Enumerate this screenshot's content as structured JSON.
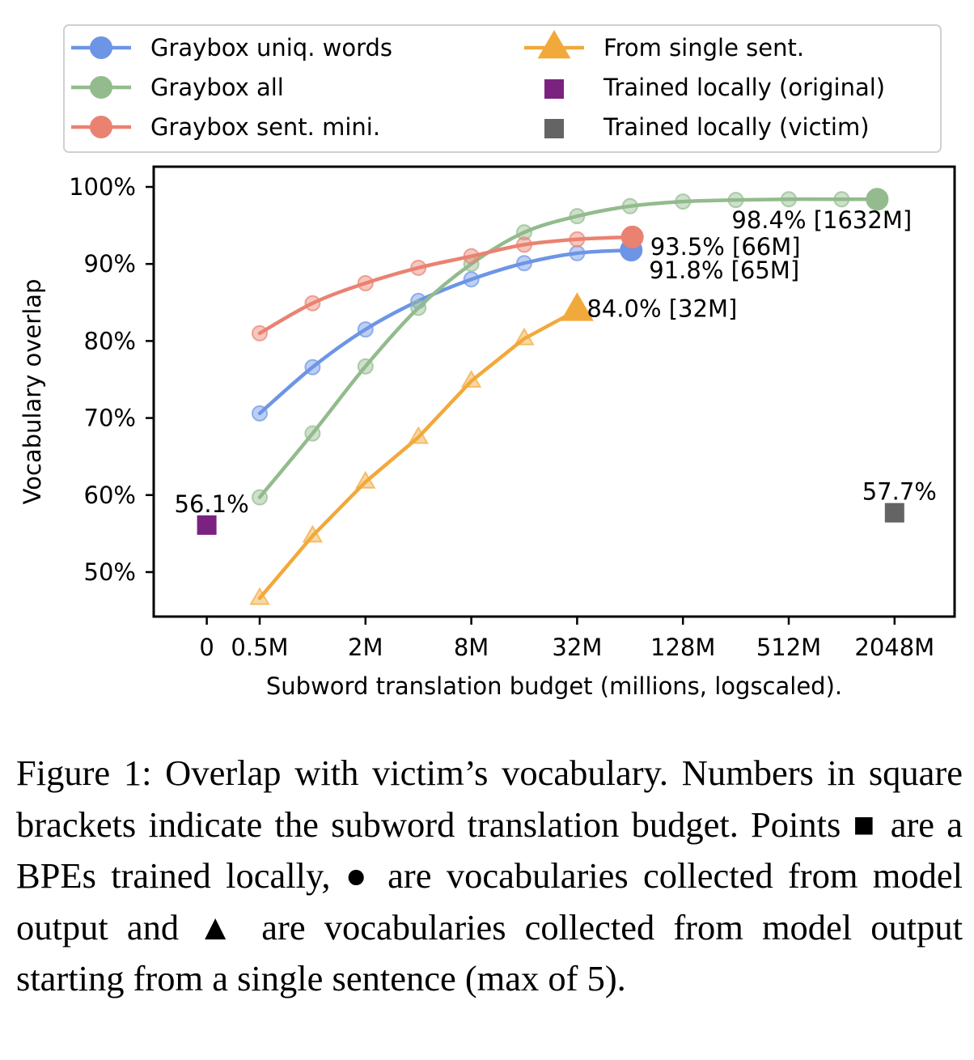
{
  "chart_data": {
    "type": "line",
    "xlabel": "Subword translation budget (millions, logscaled).",
    "ylabel": "Vocabulary overlap",
    "x_scale": "log2",
    "x_ticks": [
      {
        "value": 0,
        "label": "0"
      },
      {
        "value": 0.5,
        "label": "0.5M"
      },
      {
        "value": 2,
        "label": "2M"
      },
      {
        "value": 8,
        "label": "8M"
      },
      {
        "value": 32,
        "label": "32M"
      },
      {
        "value": 128,
        "label": "128M"
      },
      {
        "value": 512,
        "label": "512M"
      },
      {
        "value": 2048,
        "label": "2048M"
      }
    ],
    "y_ticks": [
      {
        "value": 50,
        "label": "50%"
      },
      {
        "value": 60,
        "label": "60%"
      },
      {
        "value": 70,
        "label": "70%"
      },
      {
        "value": 80,
        "label": "80%"
      },
      {
        "value": 90,
        "label": "90%"
      },
      {
        "value": 100,
        "label": "100%"
      }
    ],
    "ylim": [
      44,
      102
    ],
    "series": [
      {
        "name": "Graybox uniq. words",
        "color": "#6d95e6",
        "marker": "circle",
        "x": [
          0.5,
          1,
          2,
          4,
          8,
          16,
          32,
          65
        ],
        "y": [
          70.6,
          76.6,
          81.5,
          85.2,
          88.0,
          90.1,
          91.4,
          91.8
        ]
      },
      {
        "name": "Graybox all",
        "color": "#93bb8d",
        "marker": "circle",
        "x": [
          0.5,
          1,
          2,
          4,
          8,
          16,
          32,
          64,
          128,
          256,
          512,
          1024,
          1632
        ],
        "y": [
          59.7,
          68.0,
          76.7,
          84.3,
          90.0,
          94.1,
          96.2,
          97.5,
          98.1,
          98.3,
          98.4,
          98.4,
          98.4
        ]
      },
      {
        "name": "Graybox sent. mini.",
        "color": "#ea8272",
        "marker": "circle",
        "x": [
          0.5,
          1,
          2,
          4,
          8,
          16,
          32,
          66
        ],
        "y": [
          81.0,
          84.9,
          87.5,
          89.5,
          91.0,
          92.5,
          93.2,
          93.5
        ]
      },
      {
        "name": "From single sent.",
        "color": "#f2a93b",
        "marker": "triangle",
        "x": [
          0.5,
          1,
          2,
          4,
          8,
          16,
          32
        ],
        "y": [
          46.6,
          54.7,
          61.7,
          67.5,
          74.8,
          80.3,
          84.0
        ]
      }
    ],
    "points": [
      {
        "name": "Trained locally (original)",
        "color": "#7b2280",
        "marker": "square",
        "x": 0,
        "y": 56.1,
        "label": "56.1%"
      },
      {
        "name": "Trained locally (victim)",
        "color": "#646464",
        "marker": "square",
        "x": 2048,
        "y": 57.7,
        "label": "57.7%"
      }
    ],
    "annotations": [
      {
        "text": "98.4% [1632M]",
        "series": "Graybox all"
      },
      {
        "text": "93.5% [66M]",
        "series": "Graybox sent. mini."
      },
      {
        "text": "91.8% [65M]",
        "series": "Graybox uniq. words"
      },
      {
        "text": "84.0% [32M]",
        "series": "From single sent."
      }
    ],
    "legend": {
      "placement": "top, two columns",
      "entries": [
        "Graybox uniq. words",
        "Graybox all",
        "Graybox sent. mini.",
        "From single sent.",
        "Trained locally (original)",
        "Trained locally (victim)"
      ]
    },
    "grid": false
  },
  "caption": "Figure 1: Overlap with victim’s vocabulary. Numbers in square brackets indicate the subword translation budget. Points ■ are a BPEs trained locally, ● are vocabularies collected from model output and ▲ are vocabularies collected from model output starting from a single sentence (max of 5)."
}
